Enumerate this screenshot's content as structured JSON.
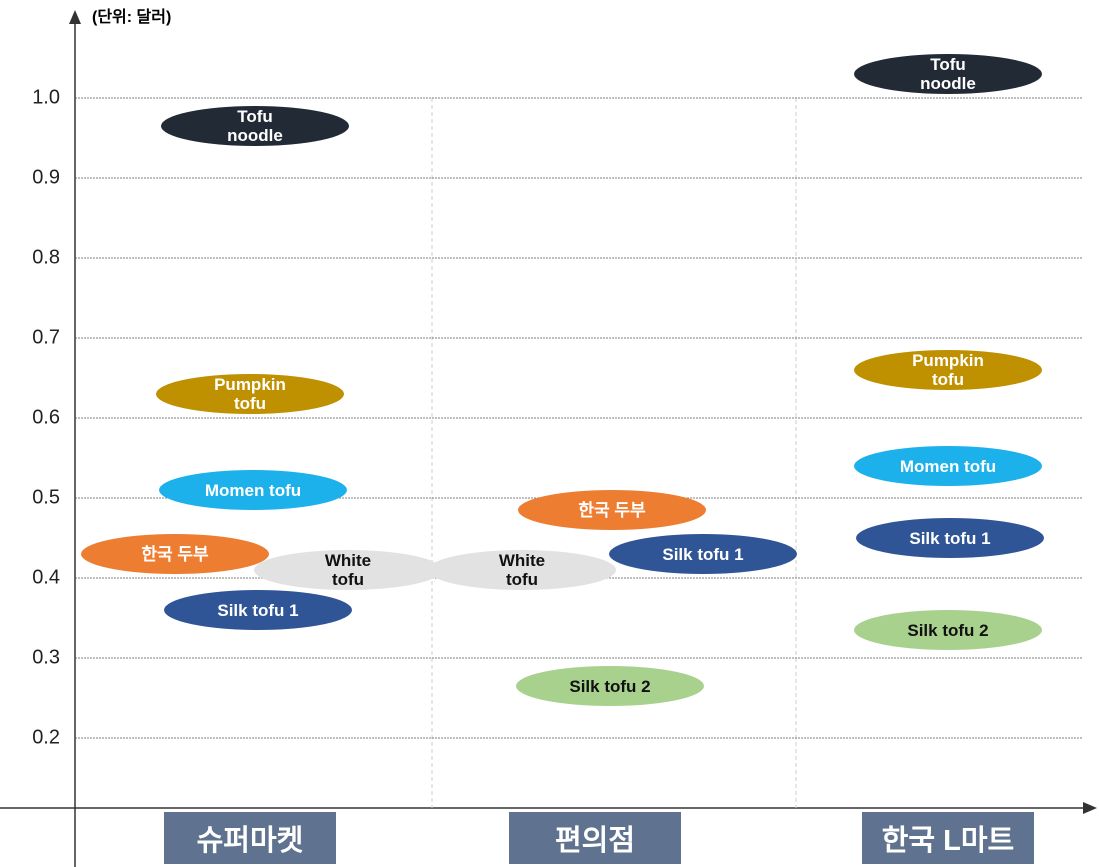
{
  "chart_data": {
    "type": "scatter",
    "subtitle": "(단위: 달러)",
    "categories": [
      "슈퍼마켓",
      "편의점",
      "한국 L마트"
    ],
    "ylim": [
      0.11,
      1.1
    ],
    "yticks": [
      0.2,
      0.3,
      0.4,
      0.5,
      0.6,
      0.7,
      0.8,
      0.9,
      {
        "value": 1,
        "label": "1.0"
      }
    ],
    "grid": true,
    "series": [
      {
        "name": "Tofu noodle",
        "color": "#222a35",
        "values": [
          0.965,
          null,
          1.03
        ]
      },
      {
        "name": "Pumpkin tofu",
        "color": "#bf9000",
        "values": [
          0.63,
          null,
          0.66
        ]
      },
      {
        "name": "Momen tofu",
        "color": "#1db1ec",
        "values": [
          0.51,
          null,
          0.54
        ]
      },
      {
        "name": "한국 두부",
        "color": "#ed7d31",
        "values": [
          0.43,
          0.485,
          null
        ]
      },
      {
        "name": "White tofu",
        "color": "#e2e2e2",
        "values": [
          0.41,
          0.41,
          null
        ]
      },
      {
        "name": "Silk tofu 1",
        "color": "#2f5597",
        "values": [
          0.36,
          0.43,
          0.45
        ]
      },
      {
        "name": "Silk tofu 2",
        "color": "#a9d18e",
        "values": [
          null,
          0.265,
          0.335
        ]
      }
    ]
  }
}
